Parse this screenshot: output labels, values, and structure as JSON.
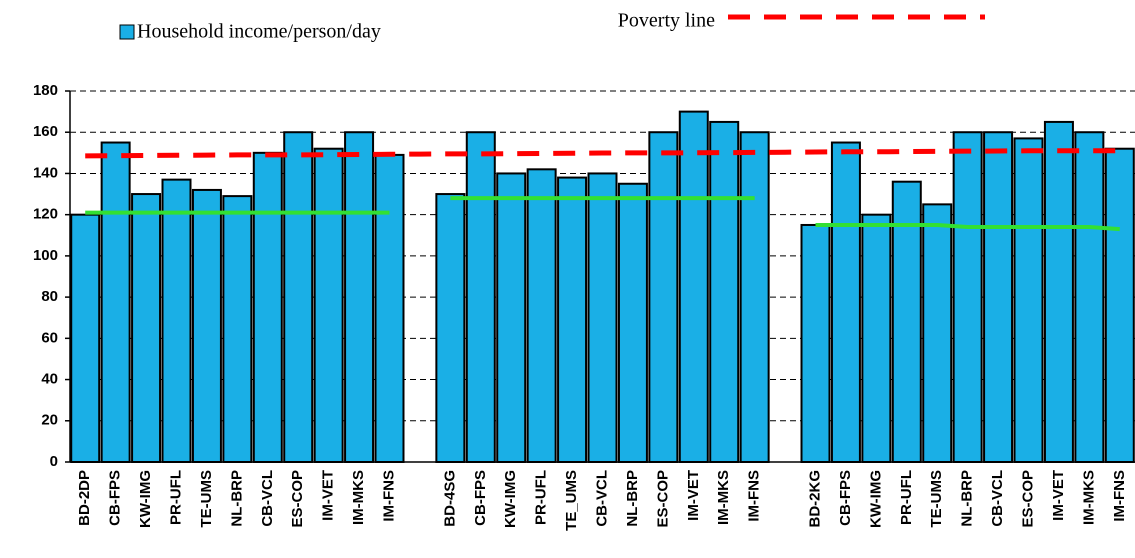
{
  "chart_data": {
    "type": "bar",
    "categories": [
      "BD-2DP",
      "CB-FPS",
      "KW-IMG",
      "PR-UFL",
      "TE-UMS",
      "NL-BRP",
      "CB-VCL",
      "ES-COP",
      "IM-VET",
      "IM-MKS",
      "IM-FNS",
      null,
      "BD-4SG",
      "CB-FPS",
      "KW-IMG",
      "PR-UFL",
      "TE_UMS",
      "CB-VCL",
      "NL-BRP",
      "ES-COP",
      "IM-VET",
      "IM-MKS",
      "IM-FNS",
      null,
      "BD-2KG",
      "CB-FPS",
      "KW-IMG",
      "PR-UFL",
      "TE-UMS",
      "NL-BRP",
      "CB-VCL",
      "ES-COP",
      "IM-VET",
      "IM-MKS",
      "IM-FNS"
    ],
    "series": [
      {
        "name": "Household income/person/day",
        "type": "bar",
        "color": "#1aafe6",
        "values": [
          120,
          155,
          130,
          137,
          132,
          129,
          150,
          160,
          152,
          160,
          149,
          null,
          130,
          160,
          140,
          142,
          138,
          140,
          135,
          160,
          170,
          165,
          160,
          null,
          115,
          155,
          120,
          136,
          125,
          160,
          160,
          157,
          165,
          160,
          152
        ]
      },
      {
        "name": "Poverty line",
        "type": "line",
        "color": "#ff0000",
        "dashed": true,
        "values": [
          148.5,
          148.6,
          148.7,
          148.8,
          148.9,
          149,
          149,
          149,
          149.1,
          149.2,
          149.3,
          149.4,
          149.5,
          149.5,
          149.6,
          149.7,
          149.8,
          149.9,
          150,
          150,
          150,
          150.1,
          150.2,
          150.3,
          150.4,
          150.5,
          150.5,
          150.6,
          150.7,
          150.8,
          150.9,
          151,
          151,
          151,
          151
        ]
      },
      {
        "type": "line",
        "color": "#33e033",
        "values": [
          121,
          121,
          121,
          121,
          121,
          121,
          121,
          121,
          121,
          121,
          121,
          null,
          128,
          128,
          128,
          128,
          128,
          128,
          128,
          128,
          128,
          128,
          128,
          null,
          115,
          115,
          115,
          115,
          115,
          114,
          114,
          114,
          114,
          114,
          113
        ]
      }
    ],
    "ylim": [
      0,
      180
    ],
    "yticks": [
      0,
      20,
      40,
      60,
      80,
      100,
      120,
      140,
      160,
      180
    ],
    "grid": true
  }
}
